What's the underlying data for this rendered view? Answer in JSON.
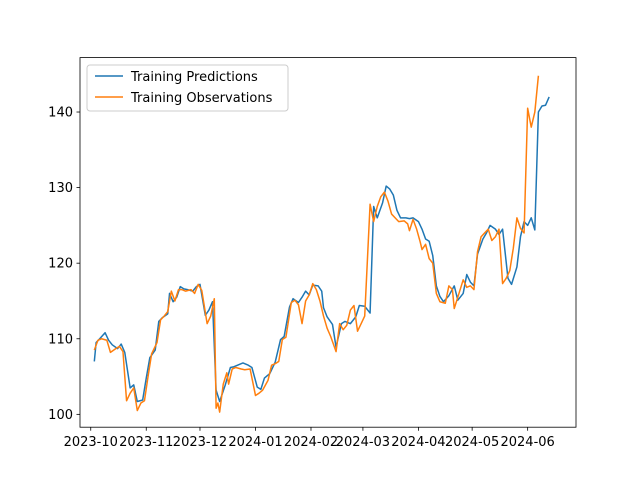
{
  "chart_data": {
    "type": "line",
    "title": "",
    "xlabel": "",
    "ylabel": "",
    "x_range": [
      "2023-09-25",
      "2024-06-28"
    ],
    "ylim": [
      98.3,
      147.2
    ],
    "x_ticks": [
      {
        "date": "2023-10-01",
        "label": "2023-10"
      },
      {
        "date": "2023-11-01",
        "label": "2023-11"
      },
      {
        "date": "2023-12-01",
        "label": "2023-12"
      },
      {
        "date": "2024-01-01",
        "label": "2024-01"
      },
      {
        "date": "2024-02-01",
        "label": "2024-02"
      },
      {
        "date": "2024-03-01",
        "label": "2024-03"
      },
      {
        "date": "2024-04-01",
        "label": "2024-04"
      },
      {
        "date": "2024-05-01",
        "label": "2024-05"
      },
      {
        "date": "2024-06-01",
        "label": "2024-06"
      }
    ],
    "y_ticks": [
      100,
      110,
      120,
      130,
      140
    ],
    "grid": false,
    "legend": {
      "position": "top-left"
    },
    "series": [
      {
        "name": "Training Predictions",
        "color": "#1f77b4",
        "points": [
          [
            "2023-10-03",
            107.0
          ],
          [
            "2023-10-04",
            109.5
          ],
          [
            "2023-10-06",
            110.0
          ],
          [
            "2023-10-09",
            110.8
          ],
          [
            "2023-10-11",
            109.8
          ],
          [
            "2023-10-13",
            109.2
          ],
          [
            "2023-10-16",
            108.7
          ],
          [
            "2023-10-18",
            109.3
          ],
          [
            "2023-10-20",
            108.2
          ],
          [
            "2023-10-23",
            103.5
          ],
          [
            "2023-10-25",
            103.9
          ],
          [
            "2023-10-27",
            101.7
          ],
          [
            "2023-10-30",
            101.9
          ],
          [
            "2023-11-01",
            104.8
          ],
          [
            "2023-11-03",
            107.5
          ],
          [
            "2023-11-06",
            108.5
          ],
          [
            "2023-11-08",
            112.3
          ],
          [
            "2023-11-10",
            112.8
          ],
          [
            "2023-11-13",
            113.3
          ],
          [
            "2023-11-14",
            116.0
          ],
          [
            "2023-11-16",
            114.9
          ],
          [
            "2023-11-18",
            115.5
          ],
          [
            "2023-11-20",
            116.9
          ],
          [
            "2023-11-22",
            116.6
          ],
          [
            "2023-11-24",
            116.5
          ],
          [
            "2023-11-27",
            116.3
          ],
          [
            "2023-11-29",
            116.9
          ],
          [
            "2023-12-01",
            117.2
          ],
          [
            "2023-12-04",
            113.1
          ],
          [
            "2023-12-06",
            113.8
          ],
          [
            "2023-12-08",
            114.9
          ],
          [
            "2023-12-10",
            103.2
          ],
          [
            "2023-12-12",
            101.7
          ],
          [
            "2023-12-15",
            103.8
          ],
          [
            "2023-12-18",
            106.2
          ],
          [
            "2023-12-20",
            106.3
          ],
          [
            "2023-12-22",
            106.5
          ],
          [
            "2023-12-25",
            106.8
          ],
          [
            "2023-12-28",
            106.5
          ],
          [
            "2023-12-30",
            106.2
          ],
          [
            "2024-01-02",
            103.6
          ],
          [
            "2024-01-04",
            103.3
          ],
          [
            "2024-01-06",
            104.8
          ],
          [
            "2024-01-09",
            105.4
          ],
          [
            "2024-01-12",
            106.9
          ],
          [
            "2024-01-15",
            109.9
          ],
          [
            "2024-01-17",
            110.3
          ],
          [
            "2024-01-20",
            114.2
          ],
          [
            "2024-01-22",
            115.3
          ],
          [
            "2024-01-25",
            114.8
          ],
          [
            "2024-01-27",
            115.5
          ],
          [
            "2024-01-29",
            116.3
          ],
          [
            "2024-01-31",
            115.8
          ],
          [
            "2024-02-02",
            117.1
          ],
          [
            "2024-02-05",
            117.0
          ],
          [
            "2024-02-07",
            116.3
          ],
          [
            "2024-02-08",
            114.1
          ],
          [
            "2024-02-10",
            112.9
          ],
          [
            "2024-02-13",
            111.9
          ],
          [
            "2024-02-15",
            108.9
          ],
          [
            "2024-02-18",
            112.0
          ],
          [
            "2024-02-20",
            112.3
          ],
          [
            "2024-02-23",
            112.0
          ],
          [
            "2024-02-26",
            112.9
          ],
          [
            "2024-02-28",
            114.4
          ],
          [
            "2024-03-02",
            114.3
          ],
          [
            "2024-03-05",
            113.4
          ],
          [
            "2024-03-07",
            127.5
          ],
          [
            "2024-03-09",
            126.0
          ],
          [
            "2024-03-12",
            128.0
          ],
          [
            "2024-03-14",
            130.2
          ],
          [
            "2024-03-16",
            129.8
          ],
          [
            "2024-03-18",
            129.0
          ],
          [
            "2024-03-20",
            127.0
          ],
          [
            "2024-03-22",
            126.0
          ],
          [
            "2024-03-25",
            126.0
          ],
          [
            "2024-03-27",
            125.9
          ],
          [
            "2024-03-29",
            126.0
          ],
          [
            "2024-04-01",
            125.5
          ],
          [
            "2024-04-03",
            124.5
          ],
          [
            "2024-04-05",
            123.2
          ],
          [
            "2024-04-07",
            122.9
          ],
          [
            "2024-04-09",
            121.0
          ],
          [
            "2024-04-11",
            117.0
          ],
          [
            "2024-04-13",
            115.6
          ],
          [
            "2024-04-15",
            114.9
          ],
          [
            "2024-04-18",
            115.7
          ],
          [
            "2024-04-21",
            117.0
          ],
          [
            "2024-04-23",
            115.1
          ],
          [
            "2024-04-26",
            116.0
          ],
          [
            "2024-04-28",
            118.5
          ],
          [
            "2024-04-30",
            117.5
          ],
          [
            "2024-05-02",
            117.0
          ],
          [
            "2024-05-04",
            121.2
          ],
          [
            "2024-05-07",
            123.2
          ],
          [
            "2024-05-09",
            124.0
          ],
          [
            "2024-05-11",
            125.0
          ],
          [
            "2024-05-14",
            124.5
          ],
          [
            "2024-05-16",
            123.8
          ],
          [
            "2024-05-18",
            124.5
          ],
          [
            "2024-05-21",
            118.0
          ],
          [
            "2024-05-23",
            117.2
          ],
          [
            "2024-05-26",
            119.5
          ],
          [
            "2024-05-28",
            123.5
          ],
          [
            "2024-05-30",
            125.5
          ],
          [
            "2024-06-01",
            125.0
          ],
          [
            "2024-06-03",
            126.0
          ],
          [
            "2024-06-05",
            124.4
          ],
          [
            "2024-06-07",
            140.0
          ],
          [
            "2024-06-09",
            140.8
          ],
          [
            "2024-06-11",
            140.9
          ],
          [
            "2024-06-13",
            142.0
          ]
        ]
      },
      {
        "name": "Training Observations",
        "color": "#ff7f0e",
        "points": [
          [
            "2023-10-03",
            108.5
          ],
          [
            "2023-10-05",
            109.8
          ],
          [
            "2023-10-07",
            110.0
          ],
          [
            "2023-10-10",
            109.8
          ],
          [
            "2023-10-12",
            108.2
          ],
          [
            "2023-10-15",
            108.7
          ],
          [
            "2023-10-17",
            109.0
          ],
          [
            "2023-10-19",
            108.3
          ],
          [
            "2023-10-21",
            101.8
          ],
          [
            "2023-10-23",
            102.8
          ],
          [
            "2023-10-25",
            103.5
          ],
          [
            "2023-10-27",
            100.5
          ],
          [
            "2023-10-29",
            101.5
          ],
          [
            "2023-10-31",
            101.8
          ],
          [
            "2023-11-02",
            105.0
          ],
          [
            "2023-11-04",
            108.0
          ],
          [
            "2023-11-07",
            109.5
          ],
          [
            "2023-11-09",
            112.5
          ],
          [
            "2023-11-11",
            113.0
          ],
          [
            "2023-11-13",
            113.6
          ],
          [
            "2023-11-15",
            116.3
          ],
          [
            "2023-11-17",
            115.0
          ],
          [
            "2023-11-19",
            116.5
          ],
          [
            "2023-11-21",
            116.5
          ],
          [
            "2023-11-23",
            116.3
          ],
          [
            "2023-11-26",
            116.5
          ],
          [
            "2023-11-28",
            116.0
          ],
          [
            "2023-11-30",
            117.2
          ],
          [
            "2023-12-02",
            116.4
          ],
          [
            "2023-12-05",
            112.0
          ],
          [
            "2023-12-07",
            113.0
          ],
          [
            "2023-12-09",
            115.3
          ],
          [
            "2023-12-10",
            100.8
          ],
          [
            "2023-12-11",
            101.5
          ],
          [
            "2023-12-12",
            100.3
          ],
          [
            "2023-12-14",
            104.0
          ],
          [
            "2023-12-16",
            105.5
          ],
          [
            "2023-12-17",
            104.0
          ],
          [
            "2023-12-19",
            106.0
          ],
          [
            "2023-12-21",
            106.2
          ],
          [
            "2023-12-24",
            106.0
          ],
          [
            "2023-12-26",
            105.9
          ],
          [
            "2023-12-29",
            106.0
          ],
          [
            "2024-01-01",
            102.5
          ],
          [
            "2024-01-03",
            102.8
          ],
          [
            "2024-01-05",
            103.2
          ],
          [
            "2024-01-08",
            104.5
          ],
          [
            "2024-01-10",
            106.5
          ],
          [
            "2024-01-12",
            106.7
          ],
          [
            "2024-01-14",
            107.0
          ],
          [
            "2024-01-16",
            109.9
          ],
          [
            "2024-01-18",
            110.2
          ],
          [
            "2024-01-21",
            114.8
          ],
          [
            "2024-01-23",
            115.1
          ],
          [
            "2024-01-25",
            114.5
          ],
          [
            "2024-01-27",
            112.0
          ],
          [
            "2024-01-29",
            115.0
          ],
          [
            "2024-01-31",
            115.8
          ],
          [
            "2024-02-02",
            117.3
          ],
          [
            "2024-02-04",
            116.5
          ],
          [
            "2024-02-06",
            115.0
          ],
          [
            "2024-02-08",
            113.0
          ],
          [
            "2024-02-10",
            111.4
          ],
          [
            "2024-02-12",
            110.3
          ],
          [
            "2024-02-15",
            108.3
          ],
          [
            "2024-02-17",
            112.0
          ],
          [
            "2024-02-19",
            111.2
          ],
          [
            "2024-02-21",
            111.8
          ],
          [
            "2024-02-23",
            113.8
          ],
          [
            "2024-02-25",
            114.4
          ],
          [
            "2024-02-27",
            111.0
          ],
          [
            "2024-02-29",
            112.0
          ],
          [
            "2024-03-02",
            113.0
          ],
          [
            "2024-03-05",
            127.8
          ],
          [
            "2024-03-07",
            125.5
          ],
          [
            "2024-03-09",
            127.5
          ],
          [
            "2024-03-11",
            128.8
          ],
          [
            "2024-03-13",
            129.4
          ],
          [
            "2024-03-15",
            128.2
          ],
          [
            "2024-03-17",
            126.5
          ],
          [
            "2024-03-19",
            126.0
          ],
          [
            "2024-03-21",
            125.5
          ],
          [
            "2024-03-24",
            125.6
          ],
          [
            "2024-03-26",
            125.2
          ],
          [
            "2024-03-27",
            124.3
          ],
          [
            "2024-03-29",
            125.8
          ],
          [
            "2024-03-31",
            124.5
          ],
          [
            "2024-04-02",
            122.8
          ],
          [
            "2024-04-03",
            121.8
          ],
          [
            "2024-04-05",
            122.5
          ],
          [
            "2024-04-07",
            120.6
          ],
          [
            "2024-04-09",
            120.0
          ],
          [
            "2024-04-11",
            116.0
          ],
          [
            "2024-04-13",
            114.9
          ],
          [
            "2024-04-16",
            114.7
          ],
          [
            "2024-04-18",
            117.0
          ],
          [
            "2024-04-20",
            116.5
          ],
          [
            "2024-04-21",
            114.0
          ],
          [
            "2024-04-23",
            115.5
          ],
          [
            "2024-04-26",
            117.8
          ],
          [
            "2024-04-28",
            116.8
          ],
          [
            "2024-04-30",
            117.0
          ],
          [
            "2024-05-02",
            116.5
          ],
          [
            "2024-05-04",
            121.5
          ],
          [
            "2024-05-06",
            123.5
          ],
          [
            "2024-05-08",
            124.0
          ],
          [
            "2024-05-10",
            124.5
          ],
          [
            "2024-05-12",
            123.0
          ],
          [
            "2024-05-14",
            123.5
          ],
          [
            "2024-05-16",
            124.5
          ],
          [
            "2024-05-18",
            117.3
          ],
          [
            "2024-05-20",
            118.0
          ],
          [
            "2024-05-22",
            119.0
          ],
          [
            "2024-05-24",
            122.0
          ],
          [
            "2024-05-26",
            126.0
          ],
          [
            "2024-05-28",
            124.6
          ],
          [
            "2024-05-30",
            124.0
          ],
          [
            "2024-06-01",
            140.5
          ],
          [
            "2024-06-03",
            138.0
          ],
          [
            "2024-06-05",
            140.0
          ],
          [
            "2024-06-07",
            144.8
          ]
        ]
      }
    ]
  }
}
